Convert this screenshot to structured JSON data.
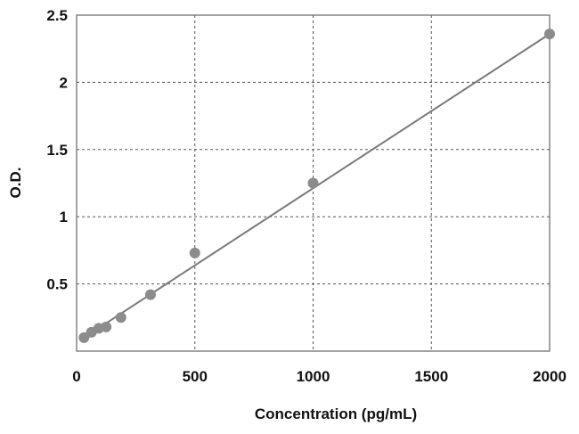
{
  "chart_data": {
    "type": "scatter",
    "xlabel": "Concentration (pg/mL)",
    "ylabel": "O.D.",
    "xlim": [
      0,
      2000
    ],
    "ylim": [
      0,
      2.5
    ],
    "x_ticks": [
      "0",
      "500",
      "1000",
      "1500",
      "2000"
    ],
    "y_ticks": [
      "0.5",
      "1",
      "1.5",
      "2",
      "2.5"
    ],
    "grid": true,
    "series": [
      {
        "points": [
          {
            "x": 31.25,
            "y": 0.1
          },
          {
            "x": 62.5,
            "y": 0.14
          },
          {
            "x": 93.75,
            "y": 0.17
          },
          {
            "x": 125,
            "y": 0.18
          },
          {
            "x": 187.5,
            "y": 0.25
          },
          {
            "x": 312.5,
            "y": 0.42
          },
          {
            "x": 500,
            "y": 0.73
          },
          {
            "x": 1000,
            "y": 1.25
          },
          {
            "x": 2000,
            "y": 2.36
          }
        ]
      }
    ],
    "trendline": {
      "type": "linear",
      "from": {
        "x": 31.25,
        "y": 0.1
      },
      "to": {
        "x": 2000,
        "y": 2.36
      }
    },
    "colors": {
      "points": "#8c8c8c",
      "line": "#7a7a7a",
      "grid": "#555555",
      "frame": "#666666"
    }
  }
}
